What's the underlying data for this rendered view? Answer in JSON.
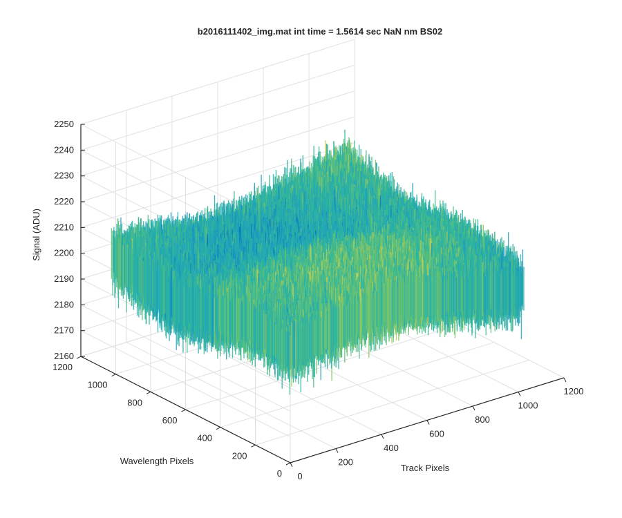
{
  "chart_data": {
    "type": "surface",
    "title": "b2016111402_img.mat int time = 1.5614 sec  NaN nm BS02",
    "xlabel": "Track Pixels",
    "ylabel": "Wavelength Pixels",
    "zlabel": "Signal (ADU)",
    "xlim": [
      0,
      1200
    ],
    "ylim": [
      0,
      1200
    ],
    "zlim": [
      2160,
      2250
    ],
    "x_ticks": [
      "0",
      "200",
      "400",
      "600",
      "800",
      "1000",
      "1200"
    ],
    "y_ticks": [
      "0",
      "200",
      "400",
      "600",
      "800",
      "1000",
      "1200"
    ],
    "z_ticks": [
      "2160",
      "2170",
      "2180",
      "2190",
      "2200",
      "2210",
      "2220",
      "2230",
      "2240",
      "2250"
    ],
    "grid": true,
    "colormap": "parula",
    "surface_extent": {
      "x": [
        0,
        1024
      ],
      "y": [
        0,
        1024
      ]
    },
    "signal_mean": 2203,
    "signal_range": [
      2165,
      2243
    ],
    "colors": {
      "low": "#0072bd",
      "mid": "#2bb5a0",
      "high": "#e6d34a",
      "axis": "#262626",
      "grid": "#e0e0e0"
    }
  }
}
